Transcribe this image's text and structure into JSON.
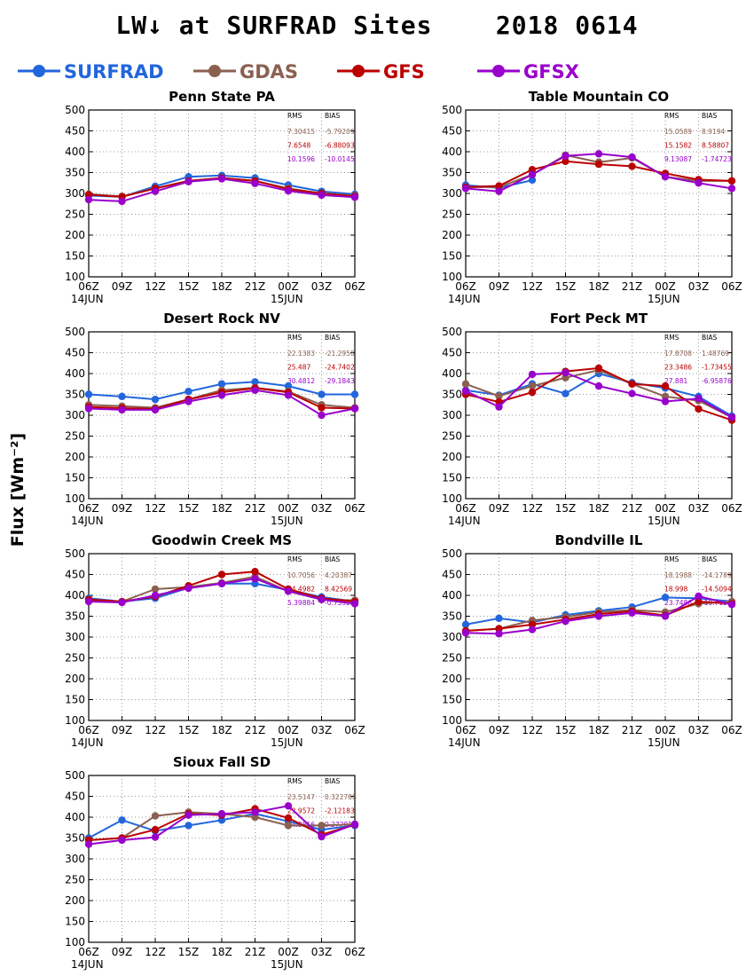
{
  "title": "LW↓ at SURFRAD Sites    2018 0614",
  "colors": {
    "SURFRAD": "#2266dd",
    "GDAS": "#8b6050",
    "GFS": "#bb0000",
    "GFSX": "#9900cc"
  },
  "legend": [
    "SURFRAD",
    "GDAS",
    "GFS",
    "GFSX"
  ],
  "ylabel": "Flux [Wm⁻²]",
  "chart_data": [
    {
      "type": "line",
      "title": "Penn State PA",
      "x": [
        "06Z",
        "09Z",
        "12Z",
        "15Z",
        "18Z",
        "21Z",
        "00Z",
        "03Z",
        "06Z"
      ],
      "date_labels": [
        "14JUN",
        "15JUN"
      ],
      "ylim": [
        100,
        500
      ],
      "yticks": [
        100,
        150,
        200,
        250,
        300,
        350,
        400,
        450,
        500
      ],
      "grid": true,
      "series": [
        {
          "name": "SURFRAD",
          "values": [
            295,
            292,
            317,
            340,
            343,
            337,
            320,
            305,
            298
          ]
        },
        {
          "name": "GDAS",
          "values": [
            298,
            293,
            312,
            330,
            337,
            330,
            312,
            300,
            295
          ]
        },
        {
          "name": "GFS",
          "values": [
            297,
            292,
            312,
            330,
            337,
            330,
            310,
            300,
            293
          ]
        },
        {
          "name": "GFSX",
          "values": [
            285,
            281,
            305,
            328,
            335,
            324,
            306,
            296,
            291
          ]
        }
      ],
      "stats": {
        "header": [
          "RMS",
          "BIAS"
        ],
        "rows": [
          [
            "7.30415",
            "-5.79209"
          ],
          [
            "7.6548",
            "-6.88093"
          ],
          [
            "10.1596",
            "-10.0145"
          ]
        ]
      }
    },
    {
      "type": "line",
      "title": "Table Mountain CO",
      "x": [
        "06Z",
        "09Z",
        "12Z",
        "15Z",
        "18Z",
        "21Z",
        "00Z",
        "03Z",
        "06Z"
      ],
      "date_labels": [
        "14JUN",
        "15JUN"
      ],
      "ylim": [
        100,
        500
      ],
      "yticks": [
        100,
        150,
        200,
        250,
        300,
        350,
        400,
        450,
        500
      ],
      "grid": true,
      "series": [
        {
          "name": "SURFRAD",
          "values": [
            320,
            313,
            332,
            null,
            null,
            null,
            null,
            null,
            null
          ]
        },
        {
          "name": "GDAS",
          "values": [
            315,
            315,
            345,
            392,
            375,
            385,
            340,
            330,
            330
          ]
        },
        {
          "name": "GFS",
          "values": [
            315,
            318,
            357,
            377,
            370,
            365,
            348,
            333,
            330
          ]
        },
        {
          "name": "GFSX",
          "values": [
            312,
            305,
            345,
            390,
            395,
            387,
            340,
            325,
            312
          ]
        }
      ],
      "stats": {
        "header": [
          "RMS",
          "BIAS"
        ],
        "rows": [
          [
            "15.0589",
            "8.9194"
          ],
          [
            "15.1582",
            "8.58807"
          ],
          [
            "9.13087",
            "-1.74723"
          ]
        ]
      }
    },
    {
      "type": "line",
      "title": "Desert Rock NV",
      "x": [
        "06Z",
        "09Z",
        "12Z",
        "15Z",
        "18Z",
        "21Z",
        "00Z",
        "03Z",
        "06Z"
      ],
      "date_labels": [
        "14JUN",
        "15JUN"
      ],
      "ylim": [
        100,
        500
      ],
      "yticks": [
        100,
        150,
        200,
        250,
        300,
        350,
        400,
        450,
        500
      ],
      "grid": true,
      "series": [
        {
          "name": "SURFRAD",
          "values": [
            350,
            345,
            338,
            357,
            375,
            380,
            370,
            350,
            350
          ]
        },
        {
          "name": "GDAS",
          "values": [
            325,
            322,
            318,
            338,
            360,
            366,
            357,
            325,
            318
          ]
        },
        {
          "name": "GFS",
          "values": [
            320,
            317,
            315,
            338,
            355,
            365,
            355,
            318,
            316
          ]
        },
        {
          "name": "GFSX",
          "values": [
            316,
            313,
            313,
            333,
            348,
            360,
            348,
            300,
            316
          ]
        }
      ],
      "stats": {
        "header": [
          "RMS",
          "BIAS"
        ],
        "rows": [
          [
            "22.1383",
            "-21.2958"
          ],
          [
            "25.487",
            "-24.7402"
          ],
          [
            "30.4812",
            "-29.1843"
          ]
        ]
      }
    },
    {
      "type": "line",
      "title": "Fort Peck MT",
      "x": [
        "06Z",
        "09Z",
        "12Z",
        "15Z",
        "18Z",
        "21Z",
        "00Z",
        "03Z",
        "06Z"
      ],
      "date_labels": [
        "14JUN",
        "15JUN"
      ],
      "ylim": [
        100,
        500
      ],
      "yticks": [
        100,
        150,
        200,
        250,
        300,
        350,
        400,
        450,
        500
      ],
      "grid": true,
      "series": [
        {
          "name": "SURFRAD",
          "values": [
            360,
            348,
            375,
            352,
            400,
            378,
            365,
            345,
            298
          ]
        },
        {
          "name": "GDAS",
          "values": [
            375,
            346,
            370,
            390,
            408,
            375,
            345,
            335,
            295
          ]
        },
        {
          "name": "GFS",
          "values": [
            350,
            332,
            355,
            405,
            413,
            375,
            370,
            315,
            288
          ]
        },
        {
          "name": "GFSX",
          "values": [
            358,
            320,
            398,
            402,
            370,
            352,
            333,
            340,
            295
          ]
        }
      ],
      "stats": {
        "header": [
          "RMS",
          "BIAS"
        ],
        "rows": [
          [
            "17.8708",
            "1.48769"
          ],
          [
            "23.3486",
            "-1.73455"
          ],
          [
            "27.881",
            "-6.95876"
          ]
        ]
      }
    },
    {
      "type": "line",
      "title": "Goodwin Creek MS",
      "x": [
        "06Z",
        "09Z",
        "12Z",
        "15Z",
        "18Z",
        "21Z",
        "00Z",
        "03Z",
        "06Z"
      ],
      "date_labels": [
        "14JUN",
        "15JUN"
      ],
      "ylim": [
        100,
        500
      ],
      "yticks": [
        100,
        150,
        200,
        250,
        300,
        350,
        400,
        450,
        500
      ],
      "grid": true,
      "series": [
        {
          "name": "SURFRAD",
          "values": [
            393,
            385,
            393,
            418,
            428,
            428,
            413,
            396,
            385
          ]
        },
        {
          "name": "GDAS",
          "values": [
            390,
            385,
            415,
            420,
            430,
            445,
            410,
            390,
            388
          ]
        },
        {
          "name": "GFS",
          "values": [
            390,
            385,
            397,
            423,
            450,
            457,
            415,
            393,
            385
          ]
        },
        {
          "name": "GFSX",
          "values": [
            385,
            383,
            400,
            417,
            428,
            440,
            410,
            390,
            380
          ]
        }
      ],
      "stats": {
        "header": [
          "RMS",
          "BIAS"
        ],
        "rows": [
          [
            "10.7056",
            "4.20387"
          ],
          [
            "14.4982",
            "8.42569"
          ],
          [
            "5.39884",
            "-0.75923"
          ]
        ]
      }
    },
    {
      "type": "line",
      "title": "Bondville IL",
      "x": [
        "06Z",
        "09Z",
        "12Z",
        "15Z",
        "18Z",
        "21Z",
        "00Z",
        "03Z",
        "06Z"
      ],
      "date_labels": [
        "14JUN",
        "15JUN"
      ],
      "ylim": [
        100,
        500
      ],
      "yticks": [
        100,
        150,
        200,
        250,
        300,
        350,
        400,
        450,
        500
      ],
      "grid": true,
      "series": [
        {
          "name": "SURFRAD",
          "values": [
            330,
            345,
            335,
            353,
            363,
            372,
            395,
            393,
            385
          ]
        },
        {
          "name": "GDAS",
          "values": [
            315,
            320,
            340,
            348,
            360,
            365,
            360,
            380,
            385
          ]
        },
        {
          "name": "GFS",
          "values": [
            315,
            320,
            330,
            342,
            355,
            362,
            352,
            385,
            380
          ]
        },
        {
          "name": "GFSX",
          "values": [
            310,
            308,
            318,
            338,
            350,
            358,
            350,
            398,
            378
          ]
        }
      ],
      "stats": {
        "header": [
          "RMS",
          "BIAS"
        ],
        "rows": [
          [
            "18.1988",
            "-14.1789"
          ],
          [
            "18.998",
            "-14.5094"
          ],
          [
            "23.7486",
            "-19.7125"
          ]
        ]
      }
    },
    {
      "type": "line",
      "title": "Sioux Fall SD",
      "x": [
        "06Z",
        "09Z",
        "12Z",
        "15Z",
        "18Z",
        "21Z",
        "00Z",
        "03Z",
        "06Z"
      ],
      "date_labels": [
        "14JUN",
        "15JUN"
      ],
      "ylim": [
        100,
        500
      ],
      "yticks": [
        100,
        150,
        200,
        250,
        300,
        350,
        400,
        450,
        500
      ],
      "grid": true,
      "series": [
        {
          "name": "SURFRAD",
          "values": [
            350,
            393,
            367,
            380,
            393,
            408,
            390,
            370,
            380
          ]
        },
        {
          "name": "GDAS",
          "values": [
            345,
            350,
            403,
            412,
            408,
            400,
            380,
            380,
            383
          ]
        },
        {
          "name": "GFS",
          "values": [
            345,
            350,
            370,
            408,
            405,
            420,
            398,
            358,
            382
          ]
        },
        {
          "name": "GFSX",
          "values": [
            335,
            345,
            352,
            405,
            408,
            412,
            427,
            353,
            383
          ]
        }
      ],
      "stats": {
        "header": [
          "RMS",
          "BIAS"
        ],
        "rows": [
          [
            "23.5147",
            "0.322788"
          ],
          [
            "23.9572",
            "-2.12183"
          ],
          [
            "24.3816",
            "0.27281"
          ]
        ]
      }
    }
  ]
}
